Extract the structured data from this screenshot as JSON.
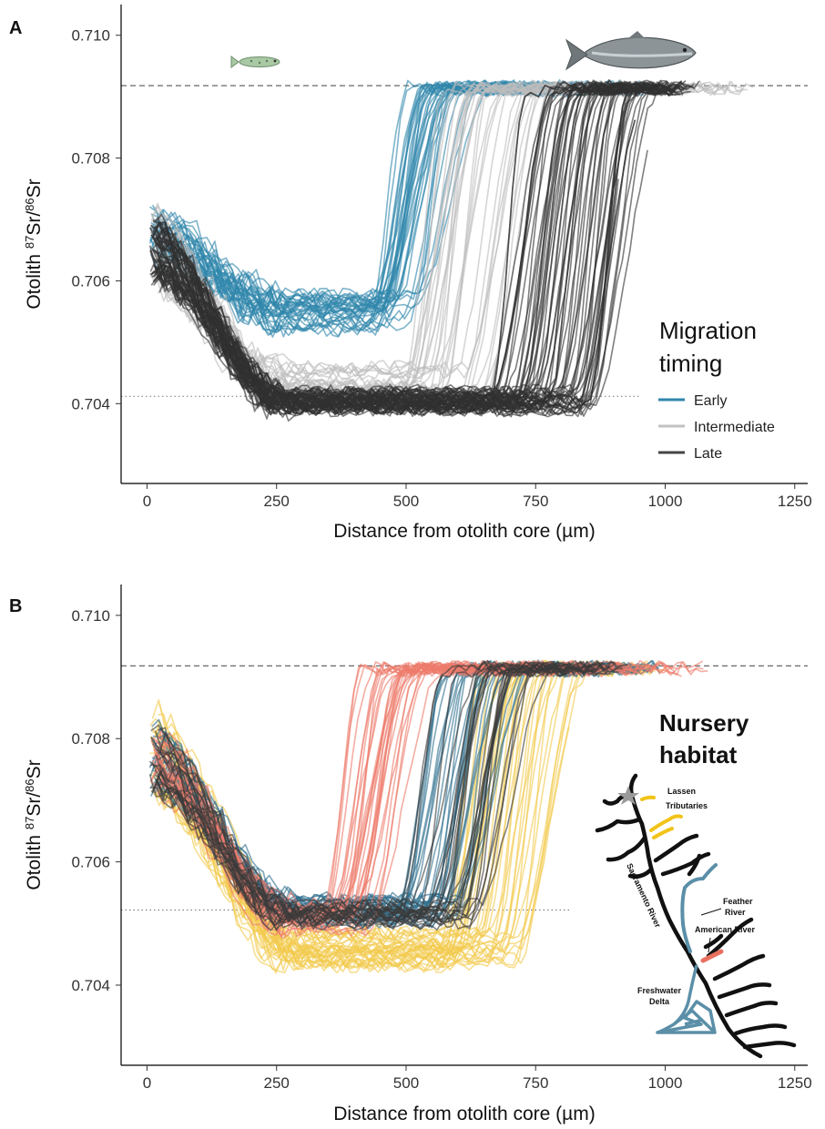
{
  "chart_data": [
    {
      "panel": "A",
      "type": "line",
      "xlabel": "Distance from otolith core (µm)",
      "ylabel_parts": [
        "Otolith ",
        "87",
        "Sr/",
        "86",
        "Sr"
      ],
      "xlim": [
        -50,
        1275
      ],
      "ylim": [
        0.7027,
        0.7105
      ],
      "xticks": [
        "0",
        "250",
        "500",
        "750",
        "1000",
        "1250"
      ],
      "yticks": [
        "0.704",
        "0.706",
        "0.708",
        "0.710"
      ],
      "grid": false,
      "legend_position": "right",
      "legend_title_lines": [
        "Migration",
        "timing"
      ],
      "reference_lines": [
        {
          "style": "dashed",
          "y": 0.70918,
          "x_range": [
            -50,
            1275
          ]
        },
        {
          "style": "dotted",
          "y": 0.70412,
          "x_range": [
            -50,
            950
          ]
        }
      ],
      "series": [
        {
          "name": "Early",
          "color": "#2e86ab",
          "count": 35,
          "start_y": [
            0.7064,
            0.7072
          ],
          "trough_x": [
            230,
            280
          ],
          "trough_y": [
            0.7052,
            0.7058
          ],
          "rise_x": [
            420,
            520
          ],
          "end_x": [
            800,
            1000
          ]
        },
        {
          "name": "Intermediate",
          "color": "#bdbdbd",
          "count": 30,
          "start_y": [
            0.7058,
            0.7072
          ],
          "trough_x": [
            240,
            290
          ],
          "trough_y": [
            0.704,
            0.7046
          ],
          "rise_x": [
            490,
            650
          ],
          "end_x": [
            850,
            1180
          ]
        },
        {
          "name": "Late",
          "color": "#303030",
          "count": 65,
          "start_y": [
            0.706,
            0.707
          ],
          "trough_x": [
            240,
            290
          ],
          "trough_y": [
            0.7039,
            0.7042
          ],
          "rise_x": [
            640,
            860
          ],
          "end_x": [
            900,
            1070
          ]
        }
      ]
    },
    {
      "panel": "B",
      "type": "line",
      "xlabel": "Distance from otolith core (µm)",
      "ylabel_parts": [
        "Otolith ",
        "87",
        "Sr/",
        "86",
        "Sr"
      ],
      "xlim": [
        -50,
        1275
      ],
      "ylim": [
        0.7027,
        0.7105
      ],
      "xticks": [
        "0",
        "250",
        "500",
        "750",
        "1000",
        "1250"
      ],
      "yticks": [
        "0.704",
        "0.706",
        "0.708",
        "0.710"
      ],
      "grid": false,
      "legend_position": "right",
      "legend_title_lines": [
        "Nursery",
        "habitat"
      ],
      "reference_lines": [
        {
          "style": "dashed",
          "y": 0.70918,
          "x_range": [
            -50,
            1275
          ]
        },
        {
          "style": "dotted",
          "y": 0.70522,
          "x_range": [
            -50,
            830
          ]
        }
      ],
      "series": [
        {
          "name": "Lassen Tributaries",
          "color": "#f2c94c",
          "count": 35,
          "start_y": [
            0.707,
            0.7086
          ],
          "trough_x": [
            260,
            320
          ],
          "trough_y": [
            0.7043,
            0.7049
          ],
          "rise_x": [
            560,
            720
          ],
          "end_x": [
            780,
            1010
          ]
        },
        {
          "name": "Feather River",
          "color": "#2e6f8e",
          "count": 30,
          "start_y": [
            0.7072,
            0.7082
          ],
          "trough_x": [
            250,
            300
          ],
          "trough_y": [
            0.705,
            0.7054
          ],
          "rise_x": [
            480,
            600
          ],
          "end_x": [
            780,
            1000
          ]
        },
        {
          "name": "American River",
          "color": "#ee7b6b",
          "count": 30,
          "start_y": [
            0.7072,
            0.7082
          ],
          "trough_x": [
            250,
            300
          ],
          "trough_y": [
            0.7049,
            0.7053
          ],
          "rise_x": [
            330,
            430
          ],
          "end_x": [
            700,
            1100
          ]
        },
        {
          "name": "Freshwater Delta",
          "color": "#3a3a3a",
          "count": 25,
          "start_y": [
            0.7072,
            0.7082
          ],
          "trough_x": [
            250,
            300
          ],
          "trough_y": [
            0.705,
            0.7053
          ],
          "rise_x": [
            480,
            640
          ],
          "end_x": [
            780,
            940
          ]
        }
      ]
    }
  ],
  "map": {
    "labels": {
      "lassen": [
        "Lassen",
        "Tributaries"
      ],
      "feather": [
        "Feather",
        "River"
      ],
      "american": "American River",
      "sacramento": "Sacramento River",
      "delta": [
        "Freshwater",
        "Delta"
      ]
    },
    "colors": {
      "river": "#111111",
      "lassen": "#f2c318",
      "feather": "#5b8fa8",
      "american": "#e8705f",
      "delta": "#5b8fa8",
      "star": "#9a9a9a"
    }
  }
}
